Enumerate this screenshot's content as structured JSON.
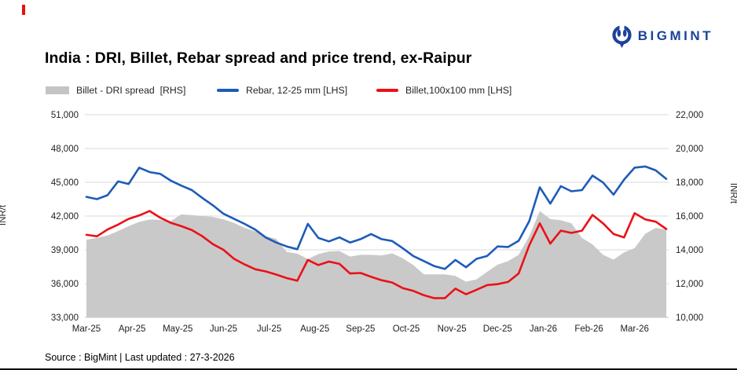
{
  "page": {
    "title": "India : DRI, Billet, Rebar spread and price trend, ex-Raipur",
    "brand": "BIGMINT",
    "footer": "Source : BigMint | Last updated : 27-3-2026"
  },
  "legend": {
    "items": [
      {
        "label": "Billet - DRI spread  [RHS]",
        "type": "area",
        "color": "#c4c4c4"
      },
      {
        "label": "Rebar, 12-25 mm [LHS]",
        "type": "line",
        "color": "#1e5bb8"
      },
      {
        "label": "Billet,100x100 mm [LHS]",
        "type": "line",
        "color": "#ea1117"
      }
    ]
  },
  "chart_data": {
    "type": "combo",
    "frequency": "weekly",
    "grid": "horizontal",
    "x_labels": [
      "Mar-25",
      "Apr-25",
      "May-25",
      "Jun-25",
      "Jul-25",
      "Aug-25",
      "Sep-25",
      "Oct-25",
      "Nov-25",
      "Dec-25",
      "Jan-26",
      "Feb-26",
      "Mar-26"
    ],
    "y_axis_left": {
      "title": "INR/t",
      "min": 33000,
      "max": 51000,
      "step": 3000
    },
    "y_axis_right": {
      "title": "INR/t",
      "min": 10000,
      "max": 22000,
      "step": 2000
    },
    "series": [
      {
        "name": "Billet - DRI spread  [RHS]",
        "type": "area",
        "axis": "right",
        "color": "#c9c9c9",
        "values": [
          14600,
          14700,
          14850,
          15110,
          15400,
          15650,
          15790,
          15780,
          15700,
          16100,
          16050,
          16000,
          15950,
          15800,
          15590,
          15300,
          15100,
          14800,
          14650,
          13870,
          13780,
          13450,
          13750,
          13900,
          13930,
          13600,
          13700,
          13700,
          13660,
          13790,
          13500,
          13100,
          12550,
          12550,
          12550,
          12450,
          12110,
          12250,
          12700,
          13120,
          13330,
          13700,
          14800,
          16300,
          15820,
          15750,
          15570,
          14700,
          14320,
          13700,
          13420,
          13850,
          14100,
          14950,
          15300,
          15200
        ]
      },
      {
        "name": "Rebar, 12-25 mm [LHS]",
        "type": "line",
        "axis": "left",
        "color": "#1e5bb8",
        "values": [
          43700,
          43500,
          43850,
          45080,
          44850,
          46300,
          45900,
          45750,
          45150,
          44700,
          44300,
          43600,
          42950,
          42200,
          41750,
          41300,
          40800,
          40100,
          39650,
          39300,
          39050,
          41300,
          40050,
          39750,
          40100,
          39650,
          39950,
          40400,
          39950,
          39780,
          39150,
          38450,
          38000,
          37550,
          37300,
          38100,
          37450,
          38200,
          38450,
          39300,
          39250,
          39800,
          41550,
          44550,
          43100,
          44650,
          44200,
          44300,
          45590,
          44980,
          43900,
          45240,
          46300,
          46400,
          46050,
          45300
        ]
      },
      {
        "name": "Billet,100x100 mm [LHS]",
        "type": "line",
        "axis": "left",
        "color": "#ea1117",
        "values": [
          40330,
          40200,
          40800,
          41240,
          41750,
          42050,
          42450,
          41850,
          41400,
          41100,
          40750,
          40200,
          39500,
          39000,
          38200,
          37700,
          37280,
          37080,
          36800,
          36490,
          36260,
          38100,
          37650,
          37950,
          37750,
          36900,
          36940,
          36600,
          36300,
          36100,
          35600,
          35350,
          34970,
          34700,
          34700,
          35550,
          35050,
          35450,
          35870,
          35950,
          36150,
          36900,
          39400,
          41350,
          39550,
          40700,
          40500,
          40700,
          42100,
          41350,
          40400,
          40100,
          42250,
          41700,
          41500,
          40850
        ]
      }
    ]
  }
}
